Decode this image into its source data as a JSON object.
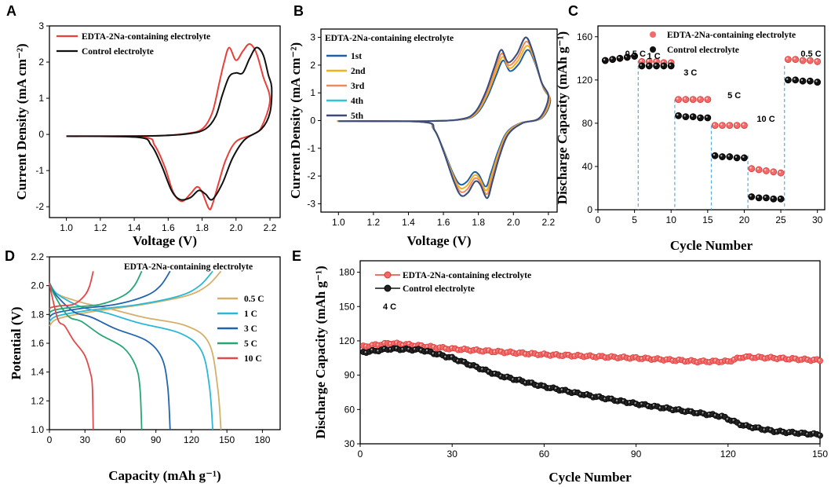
{
  "panel_labels": [
    "A",
    "B",
    "C",
    "D",
    "E"
  ],
  "colors": {
    "red": "#e8403a",
    "black": "#111111",
    "c1": "#1f5fa8",
    "c2": "#f2b21c",
    "c3": "#f08a5d",
    "c4": "#2ec4d6",
    "c5": "#3e4a7a",
    "d05": "#d4b06a",
    "d1": "#2ab8d6",
    "d3": "#2165b0",
    "d5": "#27a675",
    "d10": "#e04a4a",
    "dash": "#5aa9e6",
    "redMarkerFill": "#f26a6a"
  },
  "chart_data": [
    {
      "id": "A",
      "type": "line",
      "xlabel": "Voltage (V)",
      "ylabel": "Current Density (mA cm⁻²)",
      "xlim": [
        0.9,
        2.26
      ],
      "ylim": [
        -2.3,
        3.0
      ],
      "xticks": [
        "1.0",
        "1.2",
        "1.4",
        "1.6",
        "1.8",
        "2.0",
        "2.2"
      ],
      "yticks": [
        "-2",
        "-1",
        "0",
        "1",
        "2",
        "3"
      ],
      "series": [
        {
          "name": "EDTA-2Na-containing electrolyte",
          "color": "#e8403a",
          "anodic": [
            [
              1.0,
              -0.05
            ],
            [
              1.5,
              -0.04
            ],
            [
              1.7,
              0.02
            ],
            [
              1.8,
              0.15
            ],
            [
              1.86,
              0.6
            ],
            [
              1.9,
              1.4
            ],
            [
              1.93,
              2.0
            ],
            [
              1.96,
              2.4
            ],
            [
              2.0,
              2.05
            ],
            [
              2.04,
              2.3
            ],
            [
              2.08,
              2.5
            ],
            [
              2.12,
              2.25
            ],
            [
              2.16,
              1.6
            ],
            [
              2.2,
              0.95
            ]
          ],
          "cathodic": [
            [
              2.2,
              0.95
            ],
            [
              2.15,
              0.2
            ],
            [
              2.1,
              0.0
            ],
            [
              2.0,
              -0.2
            ],
            [
              1.94,
              -0.7
            ],
            [
              1.9,
              -1.3
            ],
            [
              1.86,
              -1.95
            ],
            [
              1.84,
              -2.05
            ],
            [
              1.8,
              -1.6
            ],
            [
              1.77,
              -1.45
            ],
            [
              1.73,
              -1.65
            ],
            [
              1.68,
              -1.85
            ],
            [
              1.63,
              -1.6
            ],
            [
              1.58,
              -0.9
            ],
            [
              1.52,
              -0.3
            ],
            [
              1.45,
              -0.08
            ],
            [
              1.0,
              -0.05
            ]
          ]
        },
        {
          "name": "Control electrolyte",
          "color": "#111111",
          "anodic": [
            [
              1.0,
              -0.05
            ],
            [
              1.5,
              -0.04
            ],
            [
              1.72,
              0.02
            ],
            [
              1.82,
              0.15
            ],
            [
              1.88,
              0.5
            ],
            [
              1.92,
              1.1
            ],
            [
              1.96,
              1.6
            ],
            [
              2.0,
              1.7
            ],
            [
              2.04,
              1.7
            ],
            [
              2.08,
              2.1
            ],
            [
              2.12,
              2.4
            ],
            [
              2.16,
              2.2
            ],
            [
              2.19,
              1.65
            ],
            [
              2.21,
              1.3
            ]
          ],
          "cathodic": [
            [
              2.21,
              1.3
            ],
            [
              2.2,
              0.6
            ],
            [
              2.15,
              0.15
            ],
            [
              2.05,
              -0.15
            ],
            [
              1.98,
              -0.65
            ],
            [
              1.92,
              -1.35
            ],
            [
              1.86,
              -1.8
            ],
            [
              1.82,
              -1.65
            ],
            [
              1.78,
              -1.55
            ],
            [
              1.73,
              -1.75
            ],
            [
              1.67,
              -1.8
            ],
            [
              1.62,
              -1.55
            ],
            [
              1.56,
              -0.85
            ],
            [
              1.5,
              -0.3
            ],
            [
              1.42,
              -0.08
            ],
            [
              1.0,
              -0.05
            ]
          ]
        }
      ]
    },
    {
      "id": "B",
      "type": "line",
      "title": "EDTA-2Na-containing electrolyte",
      "xlabel": "Voltage (V)",
      "ylabel": "Current Density (mA cm⁻²)",
      "xlim": [
        0.9,
        2.25
      ],
      "ylim": [
        -3.3,
        3.3
      ],
      "xticks": [
        "1.0",
        "1.2",
        "1.4",
        "1.6",
        "1.8",
        "2.0",
        "2.2"
      ],
      "yticks": [
        "-3",
        "-2",
        "-1",
        "0",
        "1",
        "2",
        "3"
      ],
      "series": [
        {
          "name": "1st",
          "color": "#1f5fa8",
          "s": 0.85
        },
        {
          "name": "2nd",
          "color": "#f2b21c",
          "s": 0.9
        },
        {
          "name": "3rd",
          "color": "#f08a5d",
          "s": 0.95
        },
        {
          "name": "4th",
          "color": "#2ec4d6",
          "s": 1.0
        },
        {
          "name": "5th",
          "color": "#3e4a7a",
          "s": 1.0
        }
      ],
      "base_anodic": [
        [
          1.0,
          -0.02
        ],
        [
          1.5,
          -0.02
        ],
        [
          1.7,
          0.05
        ],
        [
          1.78,
          0.3
        ],
        [
          1.84,
          1.0
        ],
        [
          1.89,
          1.9
        ],
        [
          1.93,
          2.55
        ],
        [
          1.97,
          2.1
        ],
        [
          2.02,
          2.4
        ],
        [
          2.07,
          3.0
        ],
        [
          2.11,
          2.5
        ],
        [
          2.16,
          1.4
        ],
        [
          2.2,
          0.85
        ]
      ],
      "base_cathodic": [
        [
          2.2,
          0.85
        ],
        [
          2.15,
          0.1
        ],
        [
          2.05,
          -0.1
        ],
        [
          1.97,
          -0.5
        ],
        [
          1.92,
          -1.3
        ],
        [
          1.88,
          -2.2
        ],
        [
          1.85,
          -2.8
        ],
        [
          1.81,
          -2.3
        ],
        [
          1.78,
          -2.2
        ],
        [
          1.74,
          -2.6
        ],
        [
          1.7,
          -2.7
        ],
        [
          1.66,
          -2.2
        ],
        [
          1.6,
          -1.1
        ],
        [
          1.55,
          -0.35
        ],
        [
          1.48,
          -0.05
        ],
        [
          1.0,
          -0.02
        ]
      ]
    },
    {
      "id": "C",
      "type": "scatter",
      "xlabel": "Cycle Number",
      "ylabel": "Discharge Capacity (mAh g⁻¹)",
      "xlim": [
        0,
        31
      ],
      "ylim": [
        0,
        170
      ],
      "xticks": [
        "0",
        "5",
        "10",
        "15",
        "20",
        "25",
        "30"
      ],
      "yticks": [
        "0",
        "40",
        "80",
        "120",
        "160"
      ],
      "rate_labels": [
        "0.5 C",
        "1 C",
        "3 C",
        "5 C",
        "10 C",
        "0.5 C"
      ],
      "series": [
        {
          "name": "EDTA-2Na-containing electrolyte",
          "color": "#e8403a",
          "values": [
            138,
            139,
            140,
            141,
            142,
            137,
            137,
            137,
            136,
            136,
            102,
            102,
            102,
            102,
            102,
            78,
            78,
            78,
            78,
            78,
            38,
            37,
            36,
            35,
            34,
            139,
            139,
            138,
            138,
            137
          ]
        },
        {
          "name": "Control electrolyte",
          "color": "#111111",
          "values": [
            138,
            139,
            140,
            141,
            142,
            133,
            133,
            133,
            133,
            133,
            87,
            86,
            86,
            85,
            85,
            50,
            49,
            49,
            48,
            48,
            12,
            11,
            11,
            10,
            10,
            120,
            120,
            119,
            119,
            118
          ]
        }
      ]
    },
    {
      "id": "D",
      "type": "line",
      "title": "EDTA-2Na-containing electrolyte",
      "xlabel": "Capacity (mAh g⁻¹)",
      "ylabel": "Potential (V)",
      "xlim": [
        0,
        195
      ],
      "ylim": [
        1.0,
        2.2
      ],
      "xticks": [
        "0",
        "30",
        "60",
        "90",
        "120",
        "150",
        "180"
      ],
      "yticks": [
        "1.0",
        "1.2",
        "1.4",
        "1.6",
        "1.8",
        "2.0",
        "2.2"
      ],
      "series": [
        {
          "name": "0.5 C",
          "color": "#d4b06a",
          "cap": 145
        },
        {
          "name": "1 C",
          "color": "#2ab8d6",
          "cap": 138
        },
        {
          "name": "3 C",
          "color": "#2165b0",
          "cap": 102
        },
        {
          "name": "5 C",
          "color": "#27a675",
          "cap": 78
        },
        {
          "name": "10 C",
          "color": "#e04a4a",
          "cap": 37
        }
      ]
    },
    {
      "id": "E",
      "type": "scatter",
      "xlabel": "Cycle Number",
      "ylabel": "Discharge Capacity (mAh g⁻¹)",
      "annotation": "4 C",
      "xlim": [
        0,
        150
      ],
      "ylim": [
        30,
        190
      ],
      "xticks": [
        "0",
        "30",
        "60",
        "90",
        "120",
        "150"
      ],
      "yticks": [
        "30",
        "60",
        "90",
        "120",
        "150",
        "180"
      ],
      "series": [
        {
          "name": "EDTA-2Na-containing electrolyte",
          "color": "#e8403a",
          "keypoints": [
            [
              1,
              115
            ],
            [
              10,
              118
            ],
            [
              30,
              113
            ],
            [
              60,
              108
            ],
            [
              90,
              105
            ],
            [
              110,
              102
            ],
            [
              120,
              102
            ],
            [
              125,
              106
            ],
            [
              135,
              105
            ],
            [
              150,
              103
            ]
          ]
        },
        {
          "name": "Control electrolyte",
          "color": "#111111",
          "keypoints": [
            [
              1,
              110
            ],
            [
              10,
              113
            ],
            [
              20,
              112
            ],
            [
              30,
              105
            ],
            [
              45,
              90
            ],
            [
              60,
              80
            ],
            [
              75,
              72
            ],
            [
              90,
              65
            ],
            [
              105,
              59
            ],
            [
              118,
              54
            ],
            [
              125,
              46
            ],
            [
              135,
              41
            ],
            [
              150,
              38
            ]
          ]
        }
      ]
    }
  ]
}
